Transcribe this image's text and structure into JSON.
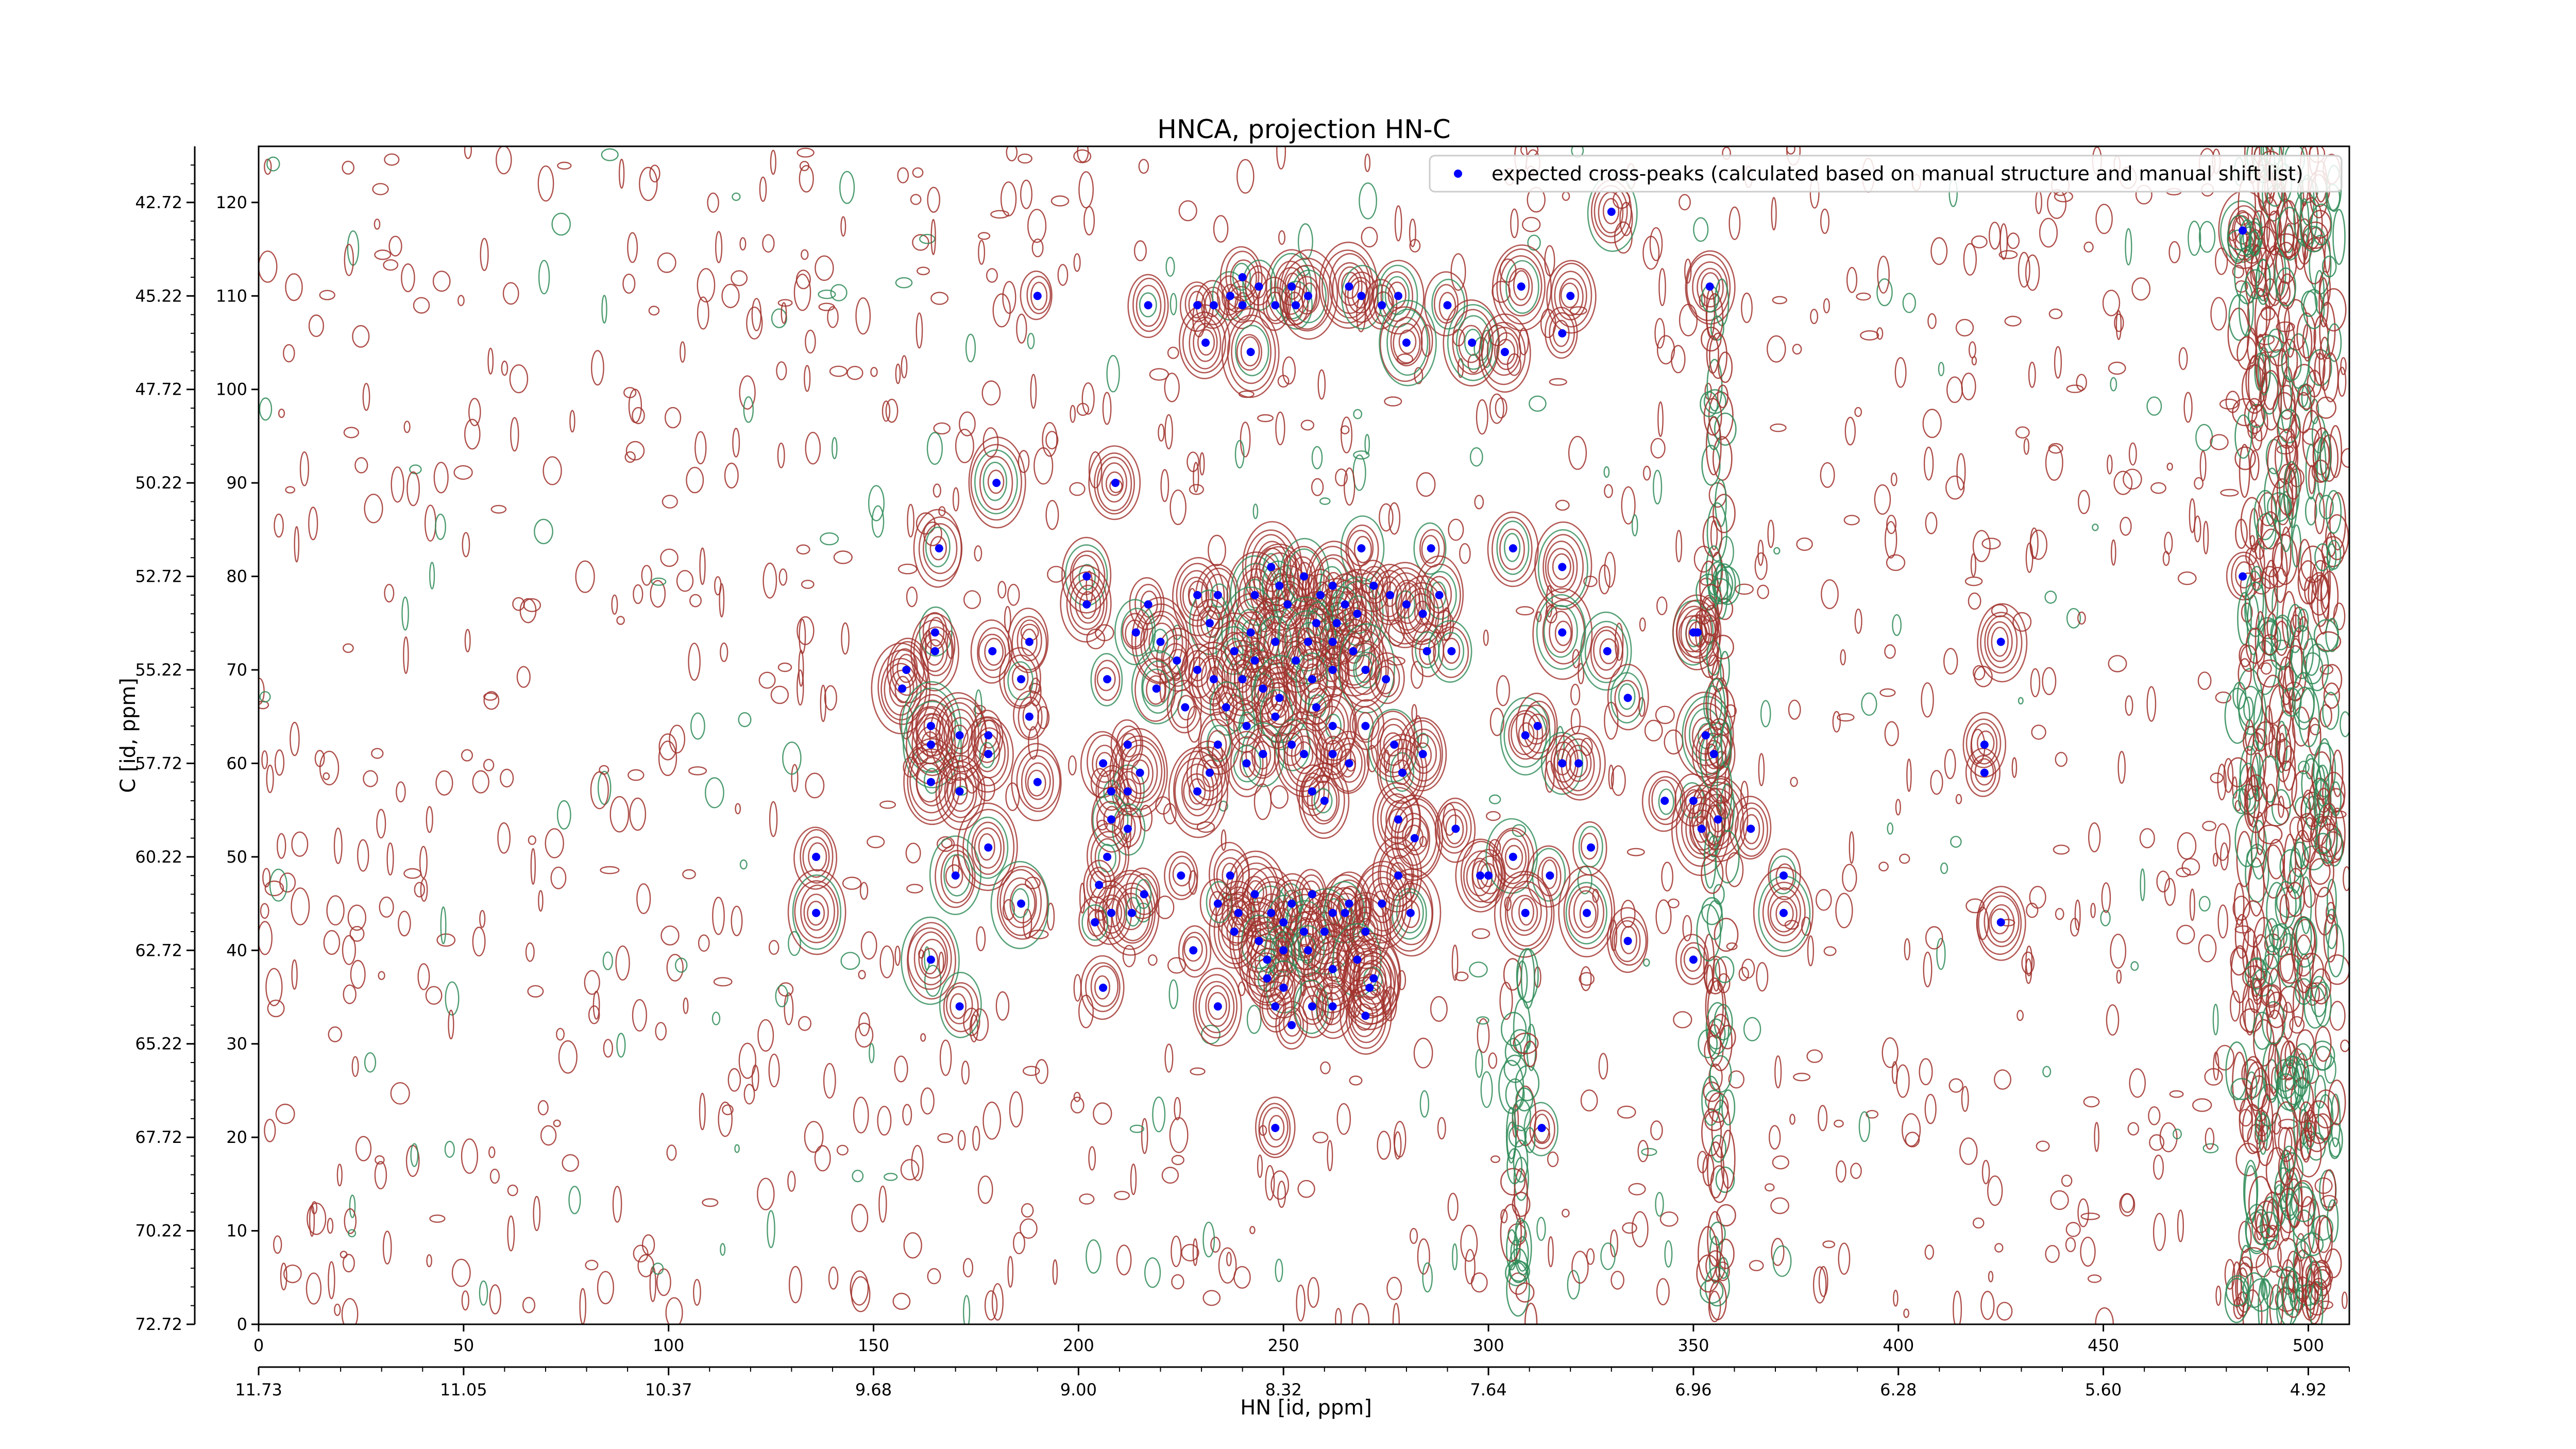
{
  "chart_data": {
    "type": "scatter",
    "title": "HNCA, projection HN-C",
    "xlabel": "HN [id, ppm]",
    "ylabel": "C [id, ppm]",
    "xlim": [
      0,
      510
    ],
    "ylim": [
      0,
      126
    ],
    "x_ticks": [
      0,
      50,
      100,
      150,
      200,
      250,
      300,
      350,
      400,
      450,
      500
    ],
    "y_ticks": [
      0,
      10,
      20,
      30,
      40,
      50,
      60,
      70,
      80,
      90,
      100,
      110,
      120
    ],
    "hn_ppm_labels": [
      "11.73",
      "11.05",
      "10.37",
      "9.68",
      "9.00",
      "8.32",
      "7.64",
      "6.96",
      "6.28",
      "5.60",
      "4.92"
    ],
    "c_ppm_labels": [
      "72.72",
      "70.22",
      "67.72",
      "65.22",
      "62.72",
      "60.22",
      "57.72",
      "55.22",
      "52.72",
      "50.22",
      "47.72",
      "45.22",
      "42.72"
    ],
    "grid": false,
    "legend_position": "top-right",
    "colors": {
      "marker": "#0000ff",
      "contour_positive": "#a0302a",
      "contour_negative": "#2e8b57"
    },
    "series": [
      {
        "name": "expected cross-peaks (calculated based on manual structure and manual shift list)",
        "points": [
          [
            190,
            110
          ],
          [
            217,
            109
          ],
          [
            229,
            109
          ],
          [
            233,
            109
          ],
          [
            237,
            110
          ],
          [
            240,
            109
          ],
          [
            240,
            112
          ],
          [
            244,
            111
          ],
          [
            248,
            109
          ],
          [
            252,
            111
          ],
          [
            253,
            109
          ],
          [
            256,
            110
          ],
          [
            266,
            111
          ],
          [
            269,
            110
          ],
          [
            274,
            109
          ],
          [
            278,
            110
          ],
          [
            290,
            109
          ],
          [
            308,
            111
          ],
          [
            320,
            110
          ],
          [
            330,
            119
          ],
          [
            354,
            111
          ],
          [
            484,
            117
          ],
          [
            231,
            105
          ],
          [
            242,
            104
          ],
          [
            280,
            105
          ],
          [
            296,
            105
          ],
          [
            304,
            104
          ],
          [
            318,
            106
          ],
          [
            180,
            90
          ],
          [
            209,
            90
          ],
          [
            166,
            83
          ],
          [
            247,
            81
          ],
          [
            269,
            83
          ],
          [
            286,
            83
          ],
          [
            306,
            83
          ],
          [
            318,
            81
          ],
          [
            202,
            80
          ],
          [
            202,
            77
          ],
          [
            217,
            77
          ],
          [
            229,
            78
          ],
          [
            234,
            78
          ],
          [
            232,
            75
          ],
          [
            243,
            78
          ],
          [
            249,
            79
          ],
          [
            251,
            77
          ],
          [
            255,
            80
          ],
          [
            259,
            78
          ],
          [
            262,
            79
          ],
          [
            265,
            77
          ],
          [
            263,
            75
          ],
          [
            258,
            75
          ],
          [
            268,
            76
          ],
          [
            272,
            79
          ],
          [
            276,
            78
          ],
          [
            280,
            77
          ],
          [
            288,
            78
          ],
          [
            284,
            76
          ],
          [
            242,
            74
          ],
          [
            248,
            73
          ],
          [
            256,
            73
          ],
          [
            262,
            73
          ],
          [
            267,
            72
          ],
          [
            253,
            71
          ],
          [
            243,
            71
          ],
          [
            238,
            72
          ],
          [
            224,
            71
          ],
          [
            229,
            70
          ],
          [
            233,
            69
          ],
          [
            240,
            69
          ],
          [
            245,
            68
          ],
          [
            249,
            67
          ],
          [
            257,
            69
          ],
          [
            262,
            70
          ],
          [
            270,
            70
          ],
          [
            275,
            69
          ],
          [
            285,
            72
          ],
          [
            291,
            72
          ],
          [
            220,
            73
          ],
          [
            214,
            74
          ],
          [
            188,
            73
          ],
          [
            186,
            69
          ],
          [
            188,
            65
          ],
          [
            165,
            74
          ],
          [
            165,
            72
          ],
          [
            158,
            70
          ],
          [
            157,
            68
          ],
          [
            179,
            72
          ],
          [
            318,
            74
          ],
          [
            329,
            72
          ],
          [
            334,
            67
          ],
          [
            350,
            74
          ],
          [
            351,
            74
          ],
          [
            425,
            73
          ],
          [
            484,
            80
          ],
          [
            207,
            69
          ],
          [
            219,
            68
          ],
          [
            226,
            66
          ],
          [
            236,
            66
          ],
          [
            241,
            64
          ],
          [
            248,
            65
          ],
          [
            258,
            66
          ],
          [
            262,
            64
          ],
          [
            252,
            62
          ],
          [
            245,
            61
          ],
          [
            262,
            61
          ],
          [
            270,
            64
          ],
          [
            277,
            62
          ],
          [
            279,
            59
          ],
          [
            266,
            60
          ],
          [
            255,
            61
          ],
          [
            241,
            60
          ],
          [
            234,
            62
          ],
          [
            232,
            59
          ],
          [
            229,
            57
          ],
          [
            257,
            57
          ],
          [
            260,
            56
          ],
          [
            212,
            62
          ],
          [
            206,
            60
          ],
          [
            208,
            57
          ],
          [
            212,
            57
          ],
          [
            215,
            59
          ],
          [
            208,
            54
          ],
          [
            212,
            53
          ],
          [
            207,
            50
          ],
          [
            205,
            47
          ],
          [
            208,
            44
          ],
          [
            213,
            44
          ],
          [
            204,
            43
          ],
          [
            216,
            46
          ],
          [
            206,
            36
          ],
          [
            164,
            64
          ],
          [
            164,
            62
          ],
          [
            164,
            58
          ],
          [
            171,
            63
          ],
          [
            178,
            63
          ],
          [
            178,
            61
          ],
          [
            171,
            57
          ],
          [
            190,
            58
          ],
          [
            284,
            61
          ],
          [
            309,
            63
          ],
          [
            312,
            64
          ],
          [
            318,
            60
          ],
          [
            322,
            60
          ],
          [
            353,
            63
          ],
          [
            355,
            61
          ],
          [
            350,
            56
          ],
          [
            356,
            54
          ],
          [
            364,
            53
          ],
          [
            352,
            53
          ],
          [
            343,
            56
          ],
          [
            421,
            62
          ],
          [
            421,
            59
          ],
          [
            278,
            54
          ],
          [
            282,
            52
          ],
          [
            292,
            53
          ],
          [
            298,
            48
          ],
          [
            300,
            48
          ],
          [
            306,
            50
          ],
          [
            315,
            48
          ],
          [
            325,
            51
          ],
          [
            278,
            48
          ],
          [
            281,
            44
          ],
          [
            274,
            45
          ],
          [
            266,
            45
          ],
          [
            262,
            44
          ],
          [
            257,
            46
          ],
          [
            252,
            45
          ],
          [
            247,
            44
          ],
          [
            243,
            46
          ],
          [
            239,
            44
          ],
          [
            238,
            42
          ],
          [
            244,
            41
          ],
          [
            250,
            43
          ],
          [
            255,
            42
          ],
          [
            260,
            42
          ],
          [
            265,
            44
          ],
          [
            270,
            42
          ],
          [
            237,
            48
          ],
          [
            234,
            45
          ],
          [
            225,
            48
          ],
          [
            136,
            50
          ],
          [
            136,
            44
          ],
          [
            170,
            48
          ],
          [
            178,
            51
          ],
          [
            164,
            39
          ],
          [
            186,
            45
          ],
          [
            228,
            40
          ],
          [
            246,
            39
          ],
          [
            250,
            40
          ],
          [
            256,
            40
          ],
          [
            262,
            38
          ],
          [
            268,
            39
          ],
          [
            272,
            37
          ],
          [
            246,
            37
          ],
          [
            250,
            36
          ],
          [
            271,
            36
          ],
          [
            171,
            34
          ],
          [
            234,
            34
          ],
          [
            248,
            34
          ],
          [
            252,
            32
          ],
          [
            257,
            34
          ],
          [
            262,
            34
          ],
          [
            270,
            33
          ],
          [
            309,
            44
          ],
          [
            324,
            44
          ],
          [
            334,
            41
          ],
          [
            350,
            39
          ],
          [
            372,
            48
          ],
          [
            372,
            44
          ],
          [
            425,
            43
          ],
          [
            248,
            21
          ],
          [
            313,
            21
          ]
        ]
      }
    ]
  }
}
